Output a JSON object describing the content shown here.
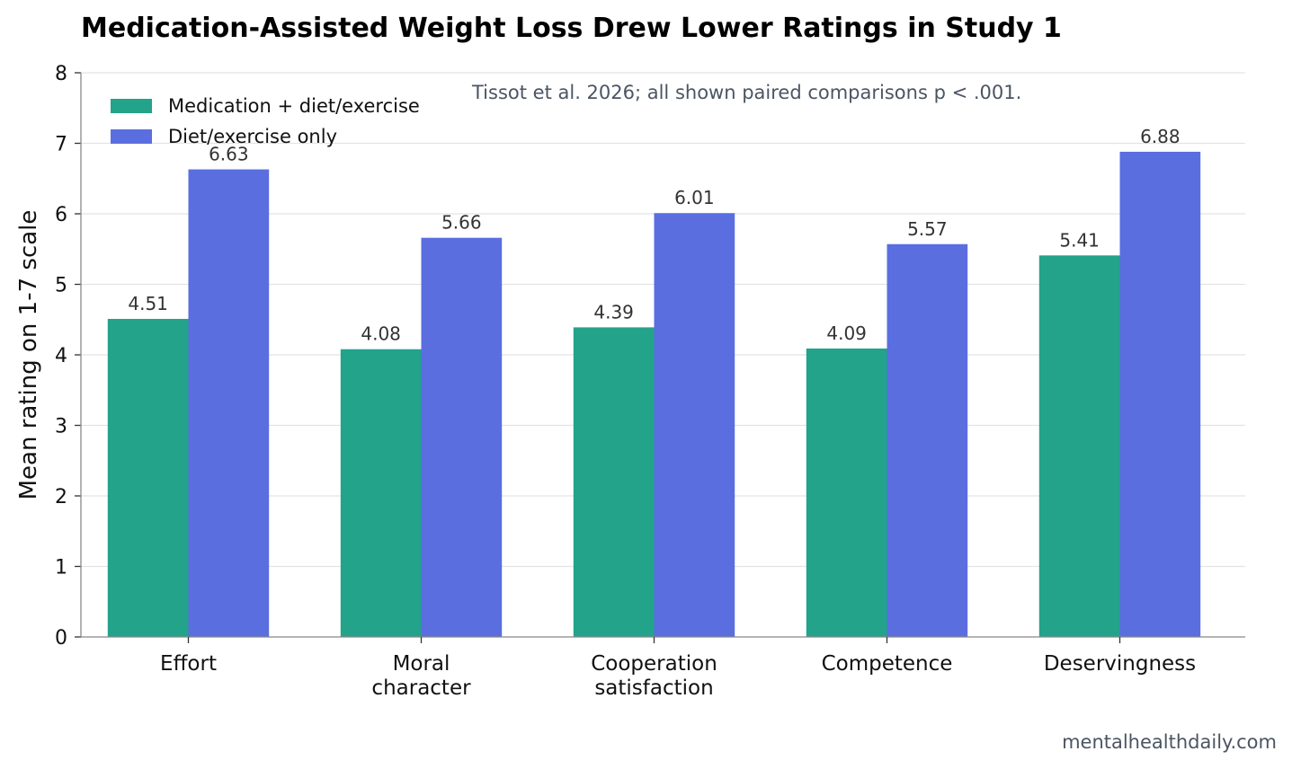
{
  "chart_data": {
    "type": "bar",
    "title": "Medication-Assisted Weight Loss Drew Lower Ratings in Study 1",
    "xlabel": "",
    "ylabel": "Mean rating on 1-7 scale",
    "ylim": [
      0,
      8
    ],
    "yticks": [
      0,
      1,
      2,
      3,
      4,
      5,
      6,
      7,
      8
    ],
    "grid": "horizontal",
    "legend_position": "top-left",
    "categories": [
      [
        "Effort"
      ],
      [
        "Moral",
        "character"
      ],
      [
        "Cooperation",
        "satisfaction"
      ],
      [
        "Competence"
      ],
      [
        "Deservingness"
      ]
    ],
    "series": [
      {
        "name": "Medication + diet/exercise",
        "color": "#22a38a",
        "values": [
          4.51,
          4.08,
          4.39,
          4.09,
          5.41
        ],
        "labels": [
          "4.51",
          "4.08",
          "4.39",
          "4.09",
          "5.41"
        ]
      },
      {
        "name": "Diet/exercise only",
        "color": "#5a6ee0",
        "values": [
          6.63,
          5.66,
          6.01,
          5.57,
          6.88
        ],
        "labels": [
          "6.63",
          "5.66",
          "6.01",
          "5.57",
          "6.88"
        ]
      }
    ],
    "annotation": "Tissot et al. 2026; all shown paired comparisons p < .001."
  },
  "footer": {
    "source": "mentalhealthdaily.com"
  }
}
